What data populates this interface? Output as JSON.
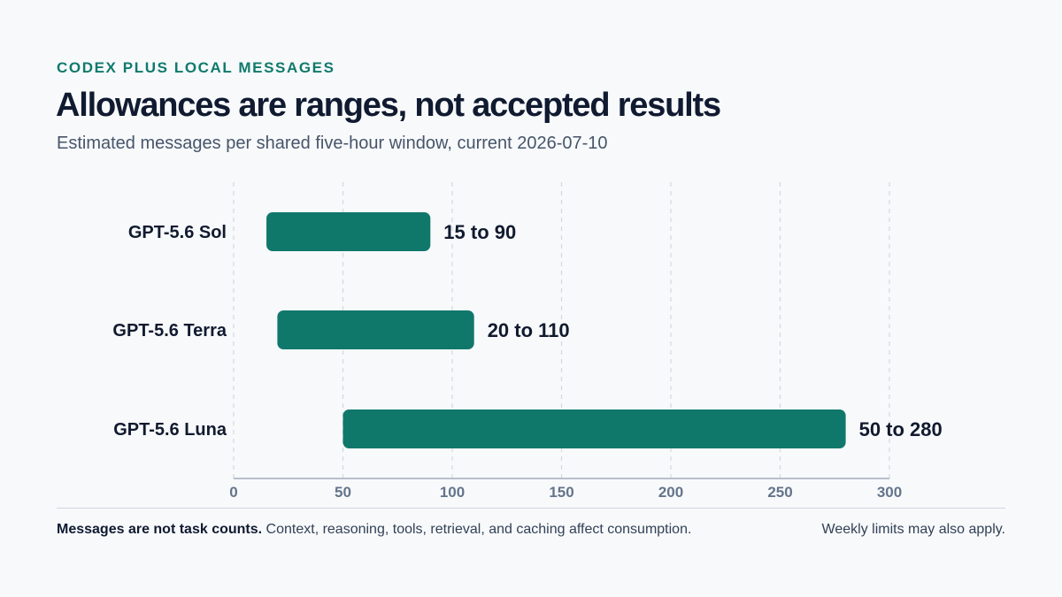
{
  "eyebrow": "CODEX PLUS LOCAL MESSAGES",
  "title": "Allowances are ranges, not accepted results",
  "subtitle": "Estimated messages per shared five-hour window, current 2026-07-10",
  "footer": {
    "note_strong": "Messages are not task counts.",
    "note_rest": "Context, reasoning, tools, retrieval, and caching affect consumption.",
    "note_right": "Weekly limits may also apply."
  },
  "colors": {
    "bar": "#10776b",
    "grid": "#d3d9e1",
    "axis": "#b7c0cc",
    "tick": "#64748b",
    "text": "#111a2e"
  },
  "chart_data": {
    "type": "bar",
    "orientation": "horizontal-range",
    "categories": [
      "GPT-5.6 Sol",
      "GPT-5.6 Terra",
      "GPT-5.6 Luna"
    ],
    "ranges": [
      [
        15,
        90
      ],
      [
        20,
        110
      ],
      [
        50,
        280
      ]
    ],
    "labels": [
      "15 to 90",
      "20 to 110",
      "50 to 280"
    ],
    "xlim": [
      0,
      300
    ],
    "xticks": [
      0,
      50,
      100,
      150,
      200,
      250,
      300
    ],
    "grid": true,
    "legend": "none"
  }
}
